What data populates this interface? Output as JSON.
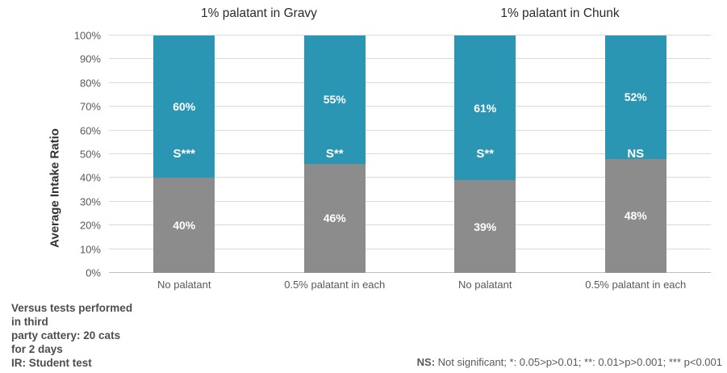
{
  "chart_data": {
    "type": "bar",
    "stacked": true,
    "ylabel": "Average Intake Ratio",
    "ylim": [
      0,
      100
    ],
    "yticks": [
      0,
      10,
      20,
      30,
      40,
      50,
      60,
      70,
      80,
      90,
      100
    ],
    "ytick_suffix": "%",
    "grid": true,
    "legend_position": "none",
    "groups": [
      {
        "title": "1% palatant in Gravy"
      },
      {
        "title": "1% palatant in Chunk"
      }
    ],
    "bars": [
      {
        "group": "1% palatant in Gravy",
        "category": "No palatant",
        "bottom_value": 40,
        "top_value": 60,
        "significance": "S***"
      },
      {
        "group": "1% palatant in Gravy",
        "category": "0.5% palatant in each",
        "bottom_value": 46,
        "top_value": 55,
        "significance": "S**"
      },
      {
        "group": "1% palatant in Chunk",
        "category": "No palatant",
        "bottom_value": 39,
        "top_value": 61,
        "significance": "S**"
      },
      {
        "group": "1% palatant in Chunk",
        "category": "0.5% palatant in each",
        "bottom_value": 48,
        "top_value": 52,
        "significance": "NS"
      }
    ],
    "colors": {
      "top_segment": "#2B95B4",
      "bottom_segment": "#8C8C8C",
      "gridline": "#D9D9D9",
      "axis_line": "#BFBFBF",
      "tick_label": "#595959",
      "bar_label": "#FFFFFF"
    }
  },
  "footnotes": {
    "left": "Versus tests performed\nin third\nparty cattery: 20 cats\nfor 2 days\nIR: Student test",
    "right_prefix": "NS:",
    "right_rest": " Not significant; *: 0.05>p>0.01; **: 0.01>p>0.001; *** p<0.001"
  }
}
